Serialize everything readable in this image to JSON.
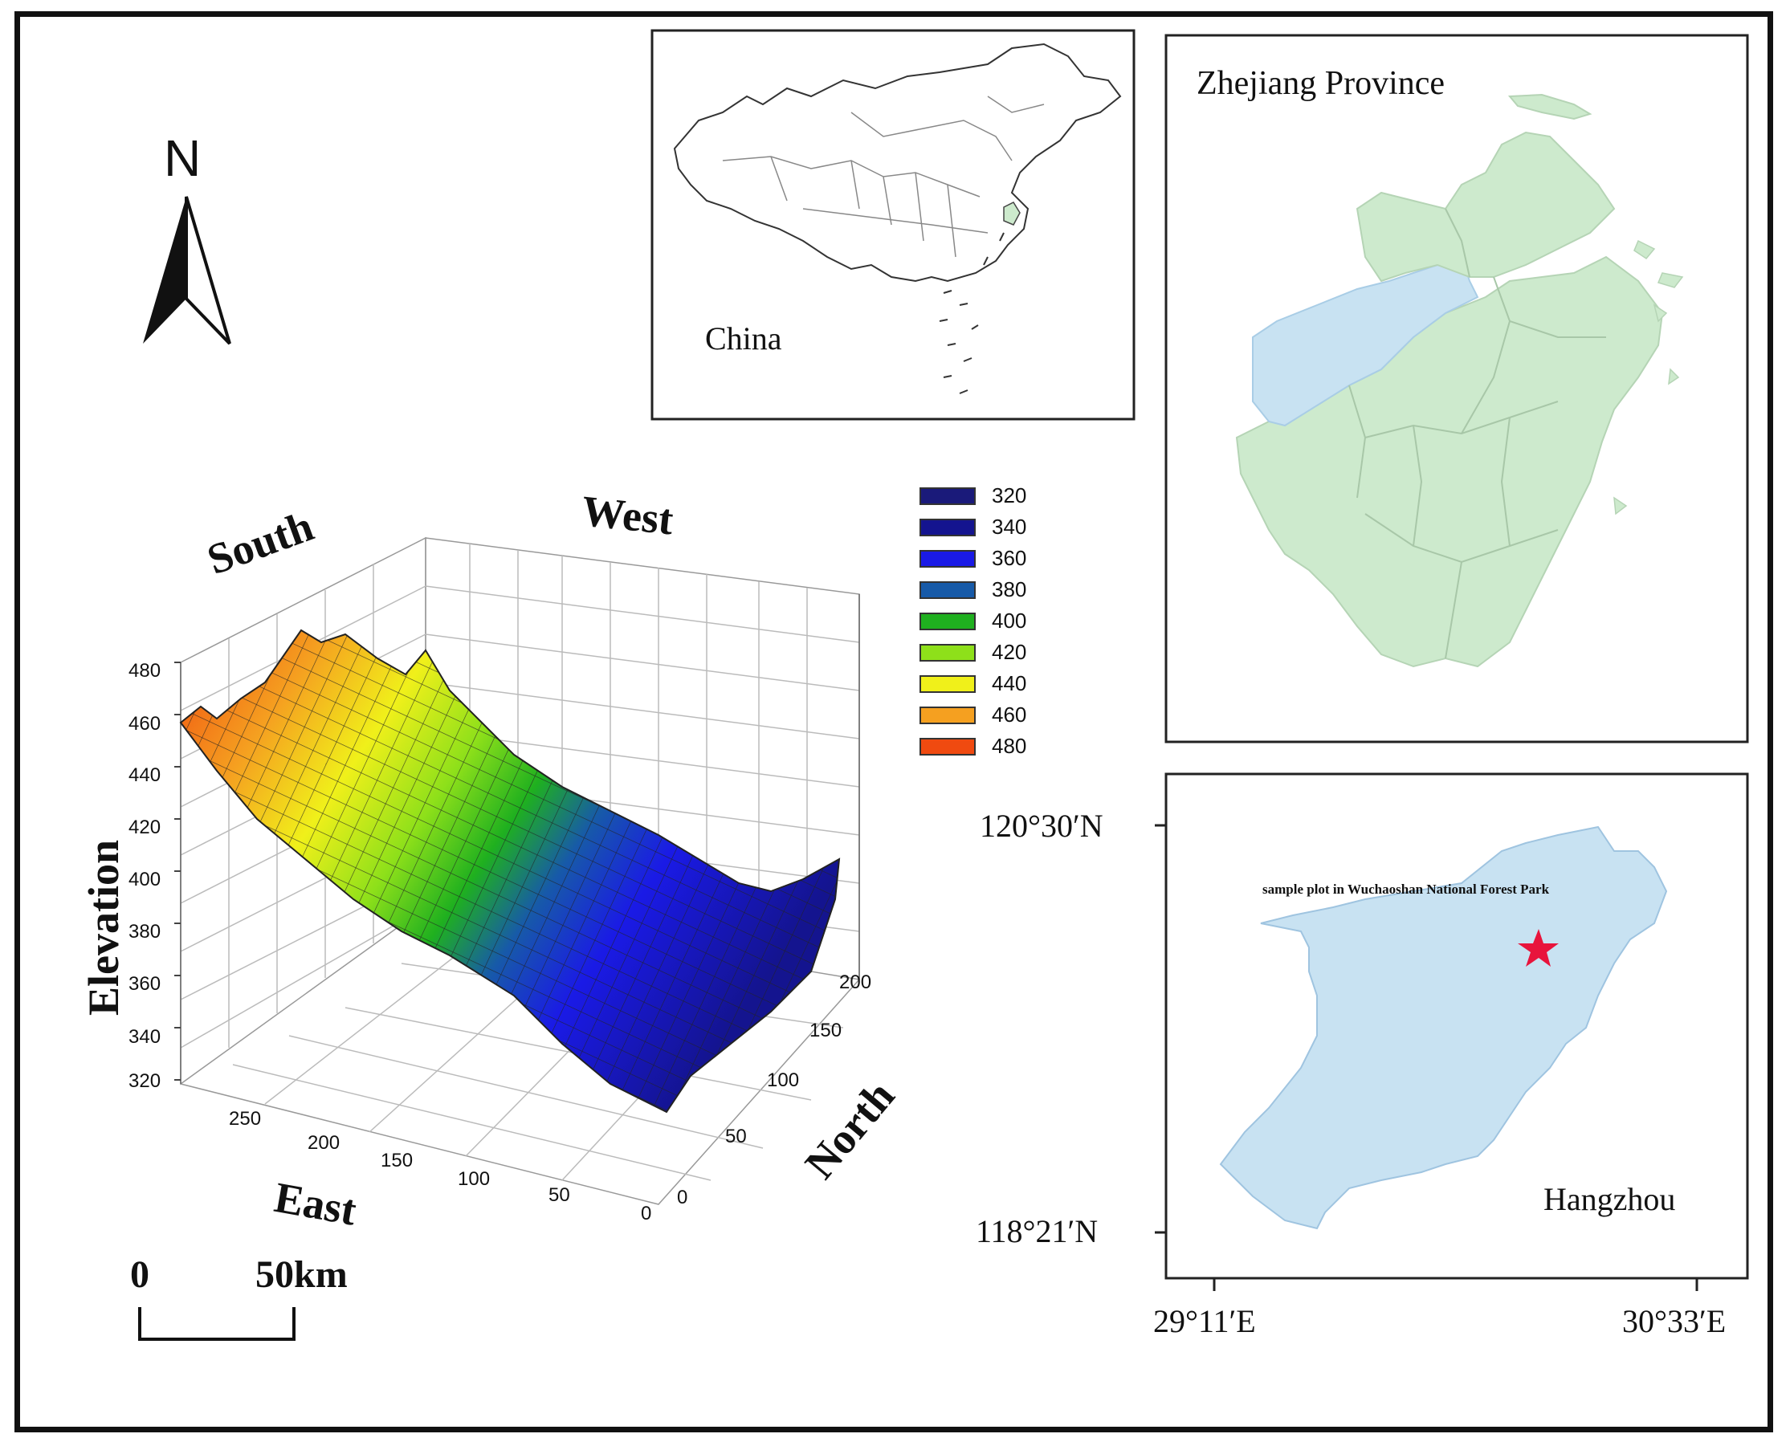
{
  "north_arrow": {
    "label": "N"
  },
  "scale_bar": {
    "start": "0",
    "end": "50km"
  },
  "inset_china": {
    "label": "China"
  },
  "inset_zhejiang": {
    "label": "Zhejiang Province"
  },
  "inset_hangzhou": {
    "label": "Hangzhou",
    "site_label": "sample plot in Wuchaoshan National Forest Park",
    "lat_ticks": [
      "120°30′N",
      "118°21′N"
    ],
    "lon_ticks": [
      "29°11′E",
      "30°33′E"
    ]
  },
  "colors": {
    "zhejiang_fill": "#cdeacd",
    "hangzhou_fill": "#c8e2f2",
    "star": "#e8143c",
    "frame": "#111111"
  },
  "chart_data": {
    "type": "surface3d",
    "direction_labels": {
      "south": "South",
      "west": "West",
      "east": "East",
      "north": "North"
    },
    "z_axis": {
      "label": "Elevation",
      "ticks": [
        "320",
        "340",
        "360",
        "380",
        "400",
        "420",
        "440",
        "460",
        "480"
      ],
      "range": [
        320,
        480
      ]
    },
    "x_axis": {
      "ticks": [
        "250",
        "200",
        "150",
        "100",
        "50",
        "0"
      ]
    },
    "y_axis": {
      "ticks": [
        "0",
        "50",
        "100",
        "150",
        "200"
      ]
    },
    "legend": [
      {
        "value": "320",
        "color": "#1a1a7a"
      },
      {
        "value": "340",
        "color": "#14148f"
      },
      {
        "value": "360",
        "color": "#1a1ae6"
      },
      {
        "value": "380",
        "color": "#175aa8"
      },
      {
        "value": "400",
        "color": "#1fb01f"
      },
      {
        "value": "420",
        "color": "#8ee01a"
      },
      {
        "value": "440",
        "color": "#f0f01a"
      },
      {
        "value": "460",
        "color": "#f5a020"
      },
      {
        "value": "480",
        "color": "#f04a10"
      }
    ]
  }
}
